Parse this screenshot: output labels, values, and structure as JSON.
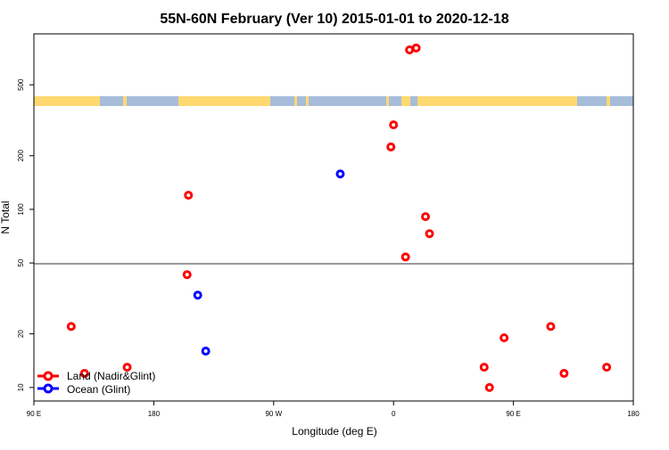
{
  "chart_data": {
    "type": "scatter",
    "title": "55N-60N February (Ver 10)   2015-01-01 to 2020-12-18",
    "xlabel": "Longitude (deg E)",
    "ylabel": "N Total",
    "x_tick_labels": [
      "90 E",
      "180",
      "90 W",
      "0",
      "90 E",
      "180"
    ],
    "x_range_deg_east_unwrapped": [
      90,
      540
    ],
    "y_scale": "log",
    "y_ticks": [
      10,
      20,
      50,
      100,
      200,
      500
    ],
    "ylim": [
      8.4,
      966
    ],
    "reference_line_y": 50,
    "grid": false,
    "legend_position": "bottom-left",
    "colors": {
      "land": "#ff0000",
      "ocean": "#0000ff",
      "map_land": "#ffd970",
      "map_ocean": "#a6bcdb"
    },
    "series": [
      {
        "name": "Land (Nadir&Glint)",
        "color": "#ff0000",
        "points": [
          {
            "lon": 118,
            "n": 22
          },
          {
            "lon": 128,
            "n": 12
          },
          {
            "lon": 160,
            "n": 13
          },
          {
            "lon": -154,
            "n": 120
          },
          {
            "lon": -155,
            "n": 43
          },
          {
            "lon": 12,
            "n": 785
          },
          {
            "lon": 17,
            "n": 805
          },
          {
            "lon": 0,
            "n": 298
          },
          {
            "lon": -2,
            "n": 224
          },
          {
            "lon": 24,
            "n": 91
          },
          {
            "lon": 27,
            "n": 73
          },
          {
            "lon": 9,
            "n": 54
          },
          {
            "lon": 68,
            "n": 13
          },
          {
            "lon": 72,
            "n": 10
          },
          {
            "lon": 83,
            "n": 19
          }
        ]
      },
      {
        "name": "Ocean (Glint)",
        "color": "#0000ff",
        "points": [
          {
            "lon": -40,
            "n": 158
          },
          {
            "lon": -147,
            "n": 33
          },
          {
            "lon": -141,
            "n": 16
          }
        ]
      }
    ]
  }
}
